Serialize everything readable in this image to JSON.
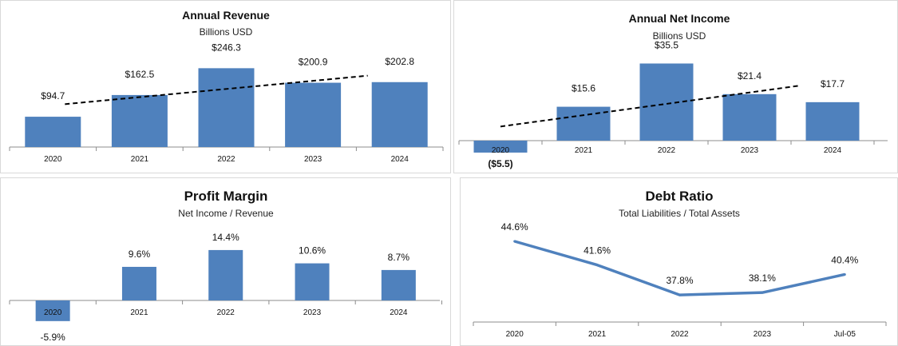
{
  "charts": [
    {
      "type": "bar",
      "title": "Annual Revenue",
      "subtitle": "Billions USD",
      "categories": [
        "2020",
        "2021",
        "2022",
        "2023",
        "2024"
      ],
      "series": [
        {
          "values": [
            94.7,
            162.5,
            246.3,
            200.9,
            202.8
          ]
        }
      ],
      "data_labels": [
        "$94.7",
        "$162.5",
        "$246.3",
        "$200.9",
        "$202.8"
      ],
      "trendline": true,
      "bar_color": "#4F81BD"
    },
    {
      "type": "bar",
      "title": "Annual Net Income",
      "subtitle": "Billions USD",
      "categories": [
        "2020",
        "2021",
        "2022",
        "2023",
        "2024"
      ],
      "series": [
        {
          "values": [
            -5.5,
            15.6,
            35.5,
            21.4,
            17.7
          ]
        }
      ],
      "data_labels": [
        "($5.5)",
        "$15.6",
        "$35.5",
        "$21.4",
        "$17.7"
      ],
      "trendline": true,
      "bar_color": "#4F81BD"
    },
    {
      "type": "bar",
      "title": "Profit Margin",
      "subtitle": "Net Income / Revenue",
      "categories": [
        "2020",
        "2021",
        "2022",
        "2023",
        "2024"
      ],
      "series": [
        {
          "values": [
            -5.9,
            9.6,
            14.4,
            10.6,
            8.7
          ]
        }
      ],
      "data_labels": [
        "-5.9%",
        "9.6%",
        "14.4%",
        "10.6%",
        "8.7%"
      ],
      "trendline": false,
      "bar_color": "#4F81BD"
    },
    {
      "type": "line",
      "title": "Debt Ratio",
      "subtitle": "Total Liabilities / Total Assets",
      "categories": [
        "2020",
        "2021",
        "2022",
        "2023",
        "Jul-05"
      ],
      "series": [
        {
          "values": [
            44.6,
            41.6,
            37.8,
            38.1,
            40.4
          ]
        }
      ],
      "data_labels": [
        "44.6%",
        "41.6%",
        "37.8%",
        "38.1%",
        "40.4%"
      ],
      "trendline": false,
      "line_color": "#4F81BD"
    }
  ],
  "chart_data": [
    {
      "type": "bar",
      "title": "Annual Revenue",
      "subtitle": "Billions USD",
      "categories": [
        "2020",
        "2021",
        "2022",
        "2023",
        "2024"
      ],
      "values": [
        94.7,
        162.5,
        246.3,
        200.9,
        202.8
      ],
      "trendline": "linear, dashed"
    },
    {
      "type": "bar",
      "title": "Annual Net Income",
      "subtitle": "Billions USD",
      "categories": [
        "2020",
        "2021",
        "2022",
        "2023",
        "2024"
      ],
      "values": [
        -5.5,
        15.6,
        35.5,
        21.4,
        17.7
      ],
      "trendline": "linear, dashed"
    },
    {
      "type": "bar",
      "title": "Profit Margin",
      "subtitle": "Net Income / Revenue",
      "categories": [
        "2020",
        "2021",
        "2022",
        "2023",
        "2024"
      ],
      "values": [
        -5.9,
        9.6,
        14.4,
        10.6,
        8.7
      ]
    },
    {
      "type": "line",
      "title": "Debt Ratio",
      "subtitle": "Total Liabilities / Total Assets",
      "categories": [
        "2020",
        "2021",
        "2022",
        "2023",
        "Jul-05"
      ],
      "values": [
        44.6,
        41.6,
        37.8,
        38.1,
        40.4
      ]
    }
  ]
}
